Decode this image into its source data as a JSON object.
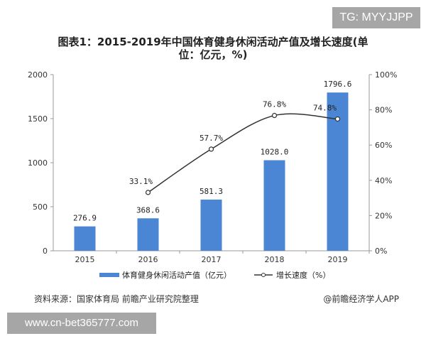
{
  "watermark_top": "TG: MYYJJPP",
  "watermark_bottom": "www.cn-bet365777.com",
  "source": "资料来源：国家体育局 前瞻产业研究院整理",
  "attribution": "@前瞻经济学人APP",
  "colors": {
    "bar": "#4a86d4",
    "line": "#333333"
  },
  "chart_data": {
    "type": "bar+line",
    "title": "图表1：2015-2019年中国体育健身休闲活动产值及增长速度(单位：亿元，%)",
    "title_line1": "图表1：2015-2019年中国体育健身休闲活动产值及增长速度(单",
    "title_line2": "位：亿元，%)",
    "categories": [
      "2015",
      "2016",
      "2017",
      "2018",
      "2019"
    ],
    "series": [
      {
        "name": "体育健身休闲活动产值（亿元）",
        "type": "bar",
        "axis": "left",
        "values": [
          276.9,
          368.6,
          581.3,
          1028.0,
          1796.6
        ],
        "labels": [
          "276.9",
          "368.6",
          "581.3",
          "1028.0",
          "1796.6"
        ]
      },
      {
        "name": "增长速度（%）",
        "type": "line",
        "axis": "right",
        "values": [
          null,
          33.1,
          57.7,
          76.8,
          74.8
        ],
        "labels": [
          "",
          "33.1%",
          "57.7%",
          "76.8%",
          "74.8%"
        ]
      }
    ],
    "left_axis": {
      "ylim": [
        0,
        2000
      ],
      "ticks": [
        "0",
        "500",
        "1000",
        "1500",
        "2000"
      ]
    },
    "right_axis": {
      "ylim": [
        0,
        100
      ],
      "ticks": [
        "0%",
        "20%",
        "40%",
        "60%",
        "80%",
        "100%"
      ]
    },
    "grid": false,
    "legend_placement": "bottom"
  }
}
